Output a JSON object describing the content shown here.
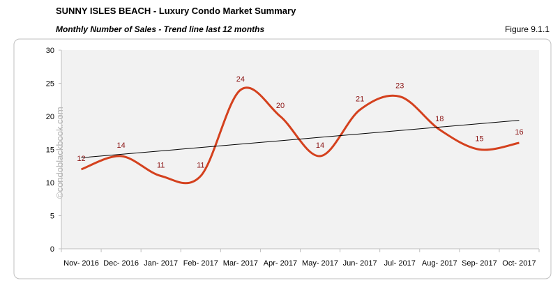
{
  "chart_data": {
    "type": "line",
    "title": "SUNNY ISLES BEACH - Luxury Condo Market Summary",
    "subtitle": "Monthly Number of Sales - Trend line last 12 months",
    "figure_label": "Figure 9.1.1",
    "watermark": "©condoblackbook.com",
    "categories": [
      "Nov- 2016",
      "Dec- 2016",
      "Jan- 2017",
      "Feb- 2017",
      "Mar- 2017",
      "Apr- 2017",
      "May- 2017",
      "Jun- 2017",
      "Jul- 2017",
      "Aug- 2017",
      "Sep- 2017",
      "Oct- 2017"
    ],
    "series": [
      {
        "color": "#d4411e",
        "values": [
          12,
          14,
          11,
          11,
          24,
          20,
          14,
          21,
          23,
          18,
          15,
          16
        ]
      }
    ],
    "label_color": "#8b1414",
    "trendline": true,
    "trendline_color": "#000000",
    "ylim": [
      0,
      30
    ],
    "yticks": [
      0,
      5,
      10,
      15,
      20,
      25,
      30
    ],
    "plot_background": "#f2f2f2"
  }
}
